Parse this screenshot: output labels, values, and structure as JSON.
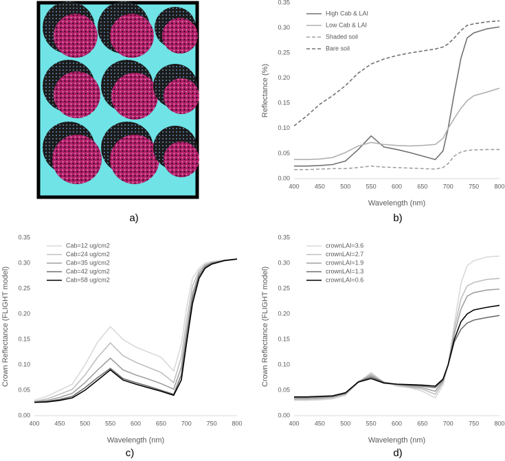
{
  "image_panel": {
    "caption": "a)"
  },
  "chart_data": [
    {
      "type": "line",
      "caption": "b)",
      "xlabel": "Wavelength (nm)",
      "ylabel": "Reflectance (%)",
      "x": [
        400,
        425,
        450,
        475,
        500,
        525,
        550,
        575,
        600,
        625,
        650,
        675,
        690,
        700,
        712,
        725,
        737,
        750,
        775,
        800
      ],
      "xlim": [
        400,
        800
      ],
      "xticks": [
        400,
        450,
        500,
        550,
        600,
        650,
        700,
        750,
        800
      ],
      "ylim": [
        0,
        0.35
      ],
      "yticks": [
        {
          "value": 0,
          "label": "0.00"
        },
        {
          "value": 0.05,
          "label": "0.05"
        },
        {
          "value": 0.1,
          "label": "0.10"
        },
        {
          "value": 0.15,
          "label": "0.15"
        },
        {
          "value": 0.2,
          "label": "0.20"
        },
        {
          "value": 0.25,
          "label": "0.25"
        },
        {
          "value": 0.3,
          "label": "0.30"
        },
        {
          "value": 0.35,
          "label": "0.35"
        }
      ],
      "legend": "upper-left",
      "series": [
        {
          "name": "High Cab & LAI",
          "color": "#707070",
          "dash": false,
          "values": [
            0.025,
            0.025,
            0.026,
            0.028,
            0.035,
            0.058,
            0.085,
            0.063,
            0.058,
            0.052,
            0.045,
            0.038,
            0.055,
            0.1,
            0.17,
            0.24,
            0.28,
            0.29,
            0.298,
            0.302
          ]
        },
        {
          "name": "Low Cab & LAI",
          "color": "#b0b0b0",
          "dash": false,
          "values": [
            0.038,
            0.038,
            0.039,
            0.042,
            0.052,
            0.065,
            0.072,
            0.068,
            0.066,
            0.065,
            0.066,
            0.068,
            0.08,
            0.1,
            0.12,
            0.14,
            0.155,
            0.165,
            0.172,
            0.18
          ]
        },
        {
          "name": "Shaded soil",
          "color": "#a0a0a0",
          "dash": true,
          "values": [
            0.018,
            0.018,
            0.019,
            0.02,
            0.02,
            0.022,
            0.025,
            0.023,
            0.022,
            0.021,
            0.02,
            0.019,
            0.022,
            0.03,
            0.045,
            0.053,
            0.056,
            0.057,
            0.058,
            0.058
          ]
        },
        {
          "name": "Bare soil",
          "color": "#707070",
          "dash": true,
          "values": [
            0.105,
            0.125,
            0.148,
            0.165,
            0.185,
            0.21,
            0.228,
            0.238,
            0.245,
            0.25,
            0.254,
            0.258,
            0.262,
            0.268,
            0.28,
            0.295,
            0.305,
            0.308,
            0.312,
            0.314
          ]
        }
      ]
    },
    {
      "type": "line",
      "caption": "c)",
      "xlabel": "Wavelength (nm)",
      "ylabel": "Crown Reflectance (FLIGHT model)",
      "x": [
        400,
        425,
        450,
        475,
        500,
        525,
        550,
        575,
        600,
        625,
        650,
        675,
        690,
        700,
        712,
        725,
        737,
        750,
        775,
        800
      ],
      "xlim": [
        400,
        800
      ],
      "xticks": [
        400,
        450,
        500,
        550,
        600,
        650,
        700,
        750,
        800
      ],
      "ylim": [
        0,
        0.35
      ],
      "yticks": [
        {
          "value": 0,
          "label": "0.00"
        },
        {
          "value": 0.05,
          "label": "0.05"
        },
        {
          "value": 0.1,
          "label": "0.10"
        },
        {
          "value": 0.15,
          "label": "0.15"
        },
        {
          "value": 0.2,
          "label": "0.20"
        },
        {
          "value": 0.25,
          "label": "0.25"
        },
        {
          "value": 0.3,
          "label": "0.30"
        },
        {
          "value": 0.35,
          "label": "0.35"
        }
      ],
      "legend": "upper-left",
      "series": [
        {
          "name": "Cab=12 ug/cm2",
          "color": "#d9d9d9",
          "dash": false,
          "values": [
            0.03,
            0.038,
            0.05,
            0.062,
            0.1,
            0.145,
            0.175,
            0.15,
            0.135,
            0.125,
            0.115,
            0.088,
            0.14,
            0.21,
            0.27,
            0.29,
            0.3,
            0.303,
            0.306,
            0.308
          ]
        },
        {
          "name": "Cab=24 ug/cm2",
          "color": "#bfbfbf",
          "dash": false,
          "values": [
            0.028,
            0.033,
            0.042,
            0.052,
            0.08,
            0.115,
            0.143,
            0.118,
            0.105,
            0.095,
            0.085,
            0.065,
            0.115,
            0.185,
            0.255,
            0.285,
            0.297,
            0.302,
            0.306,
            0.308
          ]
        },
        {
          "name": "Cab=35 ug/cm2",
          "color": "#a0a0a0",
          "dash": false,
          "values": [
            0.027,
            0.03,
            0.036,
            0.044,
            0.065,
            0.09,
            0.113,
            0.09,
            0.08,
            0.072,
            0.063,
            0.052,
            0.095,
            0.165,
            0.24,
            0.28,
            0.295,
            0.3,
            0.305,
            0.308
          ]
        },
        {
          "name": "Cab=42 ug/cm2",
          "color": "#6e6e6e",
          "dash": false,
          "values": [
            0.027,
            0.028,
            0.032,
            0.038,
            0.055,
            0.075,
            0.093,
            0.073,
            0.065,
            0.058,
            0.05,
            0.042,
            0.08,
            0.15,
            0.23,
            0.275,
            0.292,
            0.3,
            0.305,
            0.308
          ]
        },
        {
          "name": "Cab=58 ug/cm2",
          "color": "#000000",
          "dash": false,
          "values": [
            0.026,
            0.027,
            0.03,
            0.035,
            0.05,
            0.07,
            0.09,
            0.07,
            0.062,
            0.055,
            0.048,
            0.04,
            0.07,
            0.14,
            0.22,
            0.27,
            0.29,
            0.298,
            0.305,
            0.308
          ]
        }
      ]
    },
    {
      "type": "line",
      "caption": "d)",
      "xlabel": "Wavelength (nm)",
      "ylabel": "Crown Reflectance (FLIGHT model)",
      "x": [
        400,
        425,
        450,
        475,
        500,
        525,
        550,
        575,
        600,
        625,
        650,
        675,
        690,
        700,
        712,
        725,
        737,
        750,
        775,
        800
      ],
      "xlim": [
        400,
        800
      ],
      "xticks": [
        400,
        450,
        500,
        550,
        600,
        650,
        700,
        750,
        800
      ],
      "ylim": [
        0,
        0.35
      ],
      "yticks": [
        {
          "value": 0,
          "label": "0.00"
        },
        {
          "value": 0.05,
          "label": "0.05"
        },
        {
          "value": 0.1,
          "label": "0.10"
        },
        {
          "value": 0.15,
          "label": "0.15"
        },
        {
          "value": 0.2,
          "label": "0.20"
        },
        {
          "value": 0.25,
          "label": "0.25"
        },
        {
          "value": 0.3,
          "label": "0.30"
        },
        {
          "value": 0.35,
          "label": "0.35"
        }
      ],
      "legend": "upper-left",
      "series": [
        {
          "name": "crownLAI=3.6",
          "color": "#d9d9d9",
          "dash": false,
          "values": [
            0.03,
            0.03,
            0.031,
            0.033,
            0.04,
            0.065,
            0.085,
            0.065,
            0.058,
            0.055,
            0.048,
            0.035,
            0.06,
            0.1,
            0.18,
            0.26,
            0.295,
            0.305,
            0.312,
            0.314
          ]
        },
        {
          "name": "crownLAI=2.7",
          "color": "#bfbfbf",
          "dash": false,
          "values": [
            0.032,
            0.032,
            0.033,
            0.035,
            0.042,
            0.066,
            0.082,
            0.066,
            0.06,
            0.056,
            0.052,
            0.042,
            0.065,
            0.1,
            0.17,
            0.23,
            0.255,
            0.262,
            0.268,
            0.27
          ]
        },
        {
          "name": "crownLAI=1.9",
          "color": "#a0a0a0",
          "dash": false,
          "values": [
            0.034,
            0.034,
            0.035,
            0.037,
            0.043,
            0.067,
            0.079,
            0.066,
            0.061,
            0.058,
            0.055,
            0.048,
            0.068,
            0.1,
            0.16,
            0.21,
            0.235,
            0.242,
            0.247,
            0.249
          ]
        },
        {
          "name": "crownLAI=1.3",
          "color": "#6e6e6e",
          "dash": false,
          "values": [
            0.036,
            0.036,
            0.037,
            0.038,
            0.044,
            0.066,
            0.076,
            0.065,
            0.062,
            0.06,
            0.058,
            0.055,
            0.07,
            0.1,
            0.145,
            0.17,
            0.182,
            0.188,
            0.193,
            0.197
          ]
        },
        {
          "name": "crownLAI=0.6",
          "color": "#000000",
          "dash": false,
          "values": [
            0.037,
            0.037,
            0.038,
            0.039,
            0.045,
            0.066,
            0.073,
            0.064,
            0.062,
            0.061,
            0.06,
            0.058,
            0.072,
            0.1,
            0.15,
            0.185,
            0.2,
            0.208,
            0.213,
            0.217
          ]
        }
      ]
    }
  ]
}
